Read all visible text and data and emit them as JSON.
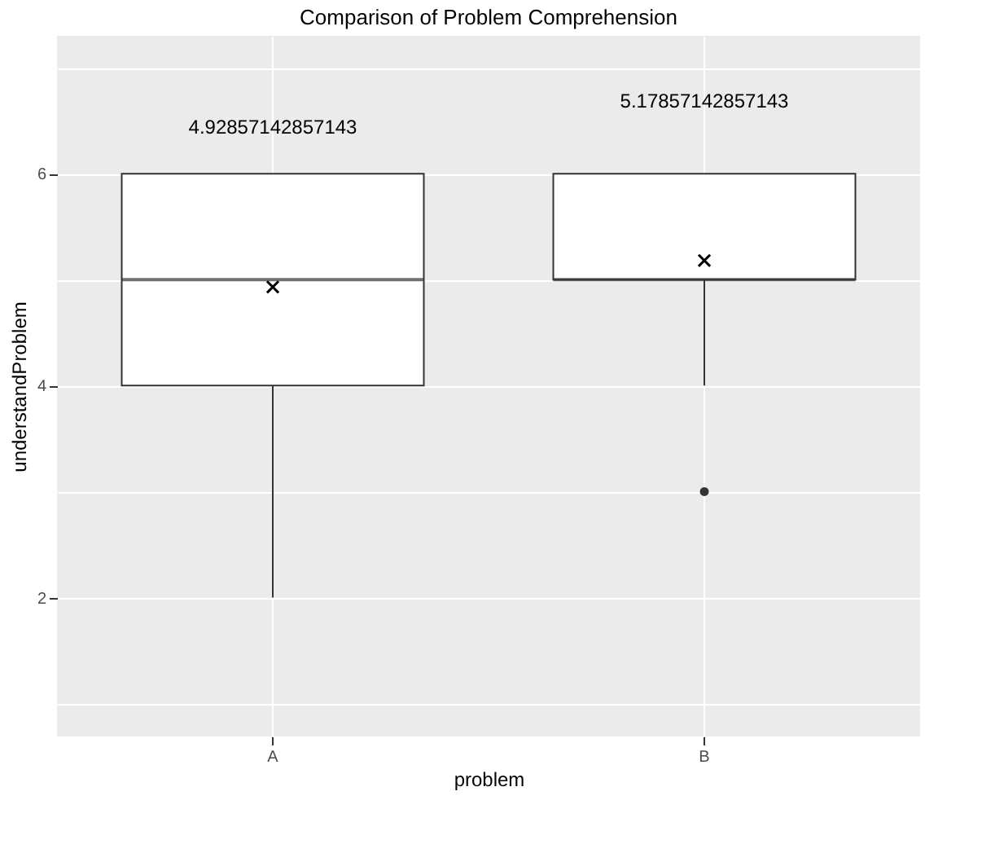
{
  "chart_data": {
    "type": "box",
    "title": "Comparison of Problem Comprehension",
    "xlabel": "problem",
    "ylabel": "understandProblem",
    "categories": [
      "A",
      "B"
    ],
    "boxes": [
      {
        "low": 2,
        "q1": 4,
        "median": 5,
        "q3": 6,
        "high": 6,
        "mean": 4.93
      },
      {
        "low": 4,
        "q1": 5,
        "median": 5,
        "q3": 6,
        "high": 6,
        "mean": 5.18,
        "outliers": [
          3
        ]
      }
    ],
    "annotations": [
      "4.92857142857143",
      "5.17857142857143"
    ],
    "ylim": [
      0.69,
      7.3
    ],
    "yticks": [
      {
        "value": 1,
        "label": null
      },
      2,
      {
        "value": 3,
        "label": null
      },
      4,
      {
        "value": 5,
        "label": null
      },
      6,
      {
        "value": 7,
        "label": null
      }
    ],
    "grid": true
  }
}
